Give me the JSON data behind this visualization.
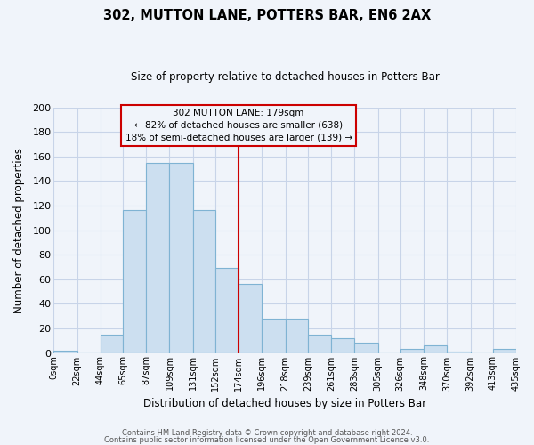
{
  "title": "302, MUTTON LANE, POTTERS BAR, EN6 2AX",
  "subtitle": "Size of property relative to detached houses in Potters Bar",
  "xlabel": "Distribution of detached houses by size in Potters Bar",
  "ylabel": "Number of detached properties",
  "bin_edges": [
    0,
    22,
    44,
    65,
    87,
    109,
    131,
    152,
    174,
    196,
    218,
    239,
    261,
    283,
    305,
    326,
    348,
    370,
    392,
    413,
    435
  ],
  "bin_counts": [
    2,
    0,
    15,
    116,
    155,
    155,
    116,
    69,
    56,
    28,
    28,
    15,
    12,
    8,
    0,
    3,
    6,
    1,
    0,
    3
  ],
  "tick_labels": [
    "0sqm",
    "22sqm",
    "44sqm",
    "65sqm",
    "87sqm",
    "109sqm",
    "131sqm",
    "152sqm",
    "174sqm",
    "196sqm",
    "218sqm",
    "239sqm",
    "261sqm",
    "283sqm",
    "305sqm",
    "326sqm",
    "348sqm",
    "370sqm",
    "392sqm",
    "413sqm",
    "435sqm"
  ],
  "bar_color": "#ccdff0",
  "bar_edge_color": "#7fb3d3",
  "vline_x": 174,
  "vline_color": "#cc0000",
  "annotation_title": "302 MUTTON LANE: 179sqm",
  "annotation_line1": "← 82% of detached houses are smaller (638)",
  "annotation_line2": "18% of semi-detached houses are larger (139) →",
  "annotation_box_edge": "#cc0000",
  "ylim": [
    0,
    200
  ],
  "yticks": [
    0,
    20,
    40,
    60,
    80,
    100,
    120,
    140,
    160,
    180,
    200
  ],
  "footer1": "Contains HM Land Registry data © Crown copyright and database right 2024.",
  "footer2": "Contains public sector information licensed under the Open Government Licence v3.0.",
  "bg_color": "#f0f4fa",
  "grid_color": "#c8d4e8"
}
